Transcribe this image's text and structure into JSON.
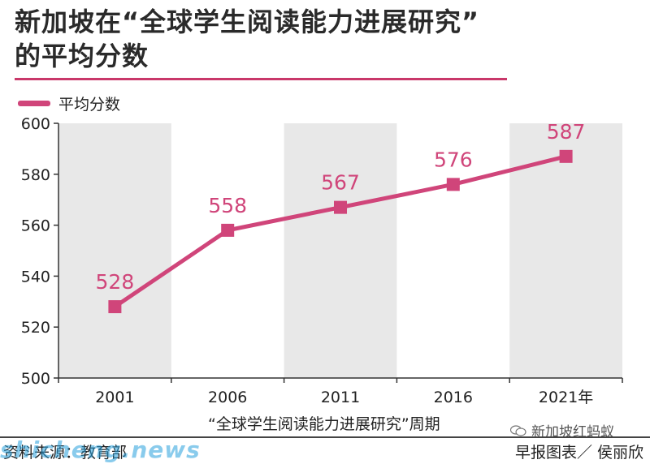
{
  "title_line1": "新加坡在“全球学生阅读能力进展研究”",
  "title_line2": "的平均分数",
  "legend_label": "平均分数",
  "x_axis_title": "“全球学生阅读能力进展研究”周期",
  "source_left": "资料来源：教育部",
  "source_right": "早报图表／ 侯丽欣",
  "watermark_right": "新加坡红蚂蚁",
  "watermark_left": "shicheng.news",
  "colors": {
    "series": "#d0457a",
    "band": "#e8e8e8",
    "title_rule": "#c9386a"
  },
  "chart_data": {
    "type": "line",
    "categories": [
      "2001",
      "2006",
      "2011",
      "2016",
      "2021年"
    ],
    "series": [
      {
        "name": "平均分数",
        "values": [
          528,
          558,
          567,
          576,
          587
        ]
      }
    ],
    "data_labels": [
      "528",
      "558",
      "567",
      "576",
      "587"
    ],
    "y_ticks": [
      "500",
      "520",
      "540",
      "560",
      "580",
      "600"
    ],
    "ylim": [
      500,
      600
    ],
    "xlabel": "“全球学生阅读能力进展研究”周期",
    "ylabel": "",
    "grid": false,
    "legend": "top-left",
    "alternating_bands": true
  }
}
